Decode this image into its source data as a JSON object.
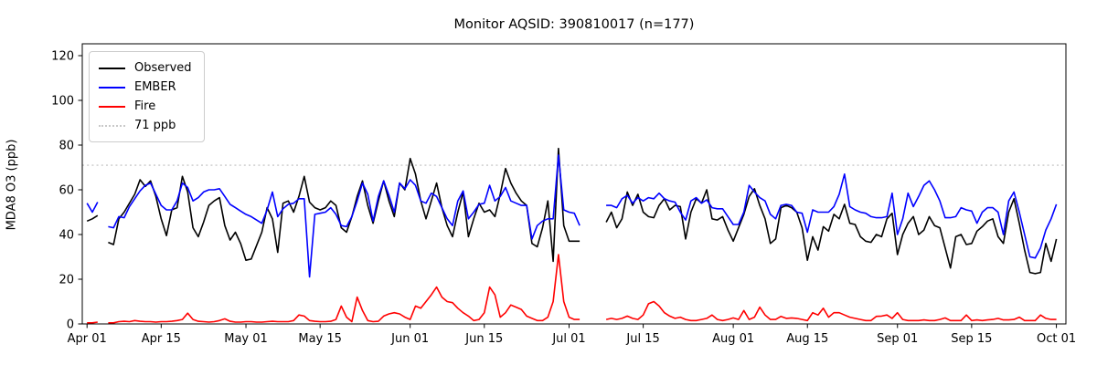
{
  "figure": {
    "background": "#ffffff"
  },
  "chart_data": {
    "type": "line",
    "title": "Monitor AQSID: 390810017 (n=177)",
    "xlabel": "",
    "ylabel": "MDA8 O3 (ppb)",
    "ylim": [
      0,
      125.3
    ],
    "yticks": [
      0,
      20,
      40,
      60,
      80,
      100,
      120
    ],
    "x_unit": "days since Apr 01",
    "xlim_days": [
      -0.9,
      184.8
    ],
    "xticks": [
      {
        "day": 0,
        "label": "Apr 01"
      },
      {
        "day": 14,
        "label": "Apr 15"
      },
      {
        "day": 30,
        "label": "May 01"
      },
      {
        "day": 44,
        "label": "May 15"
      },
      {
        "day": 61,
        "label": "Jun 01"
      },
      {
        "day": 75,
        "label": "Jun 15"
      },
      {
        "day": 91,
        "label": "Jul 01"
      },
      {
        "day": 105,
        "label": "Jul 15"
      },
      {
        "day": 122,
        "label": "Aug 01"
      },
      {
        "day": 136,
        "label": "Aug 15"
      },
      {
        "day": 153,
        "label": "Sep 01"
      },
      {
        "day": 167,
        "label": "Sep 15"
      },
      {
        "day": 183,
        "label": "Oct 01"
      }
    ],
    "grid": false,
    "legend_position": "upper left",
    "threshold": {
      "value": 71,
      "label": "71 ppb",
      "color": "#c9c9c9",
      "style": "dotted"
    },
    "gaps_note": "null = missing day (early Apr and Jul 04-07)",
    "series": [
      {
        "name": "Observed",
        "color": "#000000",
        "values": [
          46,
          47,
          48.5,
          null,
          36.5,
          35.5,
          47,
          50,
          54,
          58,
          64.5,
          61.5,
          64,
          57,
          47,
          39.5,
          51,
          52,
          66,
          59,
          43,
          39,
          45.5,
          53,
          55,
          56.5,
          44,
          37.5,
          41,
          36,
          28.5,
          29,
          35,
          41,
          52,
          47,
          32,
          54,
          55,
          50,
          57,
          66,
          54.5,
          52,
          51,
          52,
          55,
          53,
          43,
          41,
          48,
          57,
          64,
          53,
          45,
          55,
          64,
          55,
          48,
          63,
          60,
          74,
          67,
          55,
          47,
          55,
          63,
          52,
          44,
          39,
          50,
          59,
          39,
          47,
          54,
          50,
          51,
          48,
          58,
          69.5,
          63,
          58.5,
          55,
          53,
          36,
          34.5,
          43,
          55,
          28,
          78.5,
          44,
          37,
          37,
          37,
          null,
          null,
          null,
          null,
          45.5,
          50,
          43,
          47,
          59,
          53,
          58,
          50,
          48,
          47.5,
          53,
          56,
          51,
          53,
          52.5,
          38,
          50,
          56,
          54,
          60,
          47,
          46.5,
          48,
          42,
          37,
          43,
          49,
          57,
          60.5,
          53,
          47,
          36,
          38,
          52,
          53,
          52,
          50,
          43,
          28.5,
          39,
          33,
          43.5,
          41.5,
          49,
          47,
          53.5,
          45,
          44.5,
          39,
          37,
          36.5,
          40,
          39,
          47,
          49.5,
          31,
          40,
          45,
          48,
          40,
          42,
          48,
          44,
          43,
          34,
          25,
          39,
          40,
          35.5,
          36,
          41.5,
          43.5,
          46,
          47,
          39,
          36,
          50,
          56,
          45,
          33,
          23,
          22.5,
          23,
          36,
          28,
          38
        ]
      },
      {
        "name": "EMBER",
        "color": "#0000ff",
        "values": [
          54,
          50,
          54.5,
          null,
          43.5,
          43,
          48,
          47.5,
          52.5,
          56,
          59.5,
          62,
          63,
          58,
          53,
          51,
          51,
          55,
          63,
          61,
          55,
          56.5,
          59,
          60,
          60,
          60.5,
          57,
          53.5,
          52,
          50.5,
          49,
          48,
          46.5,
          45,
          51,
          59,
          48,
          51.5,
          53.5,
          54,
          56,
          56,
          21,
          49,
          49.5,
          50,
          52,
          49,
          44,
          43.5,
          48,
          55,
          63,
          58,
          46,
          57,
          64,
          57.5,
          50,
          63,
          60.5,
          64.5,
          62,
          55,
          54,
          58.5,
          57,
          52,
          47,
          44,
          55,
          59.5,
          47,
          50,
          53.5,
          54,
          62,
          55,
          57,
          61,
          55,
          54,
          53,
          53,
          38,
          44,
          46,
          47,
          47,
          75.5,
          51,
          50,
          49.5,
          44,
          null,
          null,
          null,
          null,
          53,
          53,
          52,
          56,
          57.5,
          54,
          56.5,
          55,
          56.5,
          56,
          58.5,
          56,
          55,
          54.5,
          50,
          46.5,
          55,
          56.5,
          54,
          55.5,
          52,
          51.5,
          51.5,
          48,
          44.5,
          44.5,
          50,
          62,
          59,
          56.5,
          55,
          49,
          47,
          53,
          53.5,
          53,
          50,
          49.5,
          41,
          51,
          50,
          50,
          50,
          52.5,
          58,
          67,
          52.5,
          51,
          50,
          49.5,
          48,
          47.5,
          47.5,
          48,
          58.5,
          40,
          47,
          58.5,
          52.5,
          57,
          62,
          64,
          60,
          55,
          47.5,
          47.5,
          48,
          52,
          51,
          50.5,
          45,
          50,
          52,
          52,
          50,
          40,
          55,
          59,
          50,
          40,
          30,
          29.5,
          34,
          42,
          47,
          53.5
        ]
      },
      {
        "name": "Fire",
        "color": "#ff0000",
        "values": [
          0.5,
          0.5,
          0.8,
          null,
          0.5,
          0.5,
          1,
          1.2,
          1,
          1.5,
          1.2,
          1,
          1,
          0.8,
          1,
          1,
          1.2,
          1.5,
          2,
          4.8,
          2,
          1.2,
          1,
          0.8,
          1,
          1.5,
          2.3,
          1.2,
          0.8,
          0.8,
          1,
          1,
          0.8,
          0.8,
          1,
          1.2,
          1,
          1,
          1,
          1.5,
          4,
          3.5,
          1.5,
          1.2,
          1,
          1,
          1.2,
          2,
          8,
          3,
          1,
          12,
          6,
          1.5,
          1,
          1.2,
          3.5,
          4.5,
          5,
          4.5,
          3,
          2,
          8,
          7,
          10,
          13,
          16.5,
          12,
          10,
          9.5,
          7,
          5,
          3.5,
          1.5,
          2,
          5,
          16.5,
          13,
          3,
          5,
          8.5,
          7.5,
          6.5,
          3.5,
          2.5,
          1.5,
          1.5,
          3,
          10,
          31,
          10,
          3,
          2,
          2,
          null,
          null,
          null,
          null,
          2,
          2.5,
          2,
          2.5,
          3.5,
          2.5,
          2,
          4,
          9,
          10,
          8,
          5,
          3.5,
          2.5,
          3,
          2,
          1.5,
          1.5,
          2,
          2.5,
          4,
          2,
          1.5,
          2,
          2.7,
          2,
          6,
          2,
          3,
          7.5,
          4,
          2,
          2,
          3.4,
          2.5,
          2.7,
          2.5,
          2,
          1.5,
          5,
          4,
          7,
          3,
          5,
          5,
          4,
          3,
          2.5,
          2,
          1.5,
          1.5,
          3.4,
          3.5,
          4,
          2.5,
          5,
          2,
          1.5,
          1.5,
          1.5,
          1.8,
          1.5,
          1.5,
          2,
          2.7,
          1.5,
          1.5,
          1.5,
          4,
          1.5,
          1.8,
          1.5,
          1.8,
          2,
          2.5,
          1.8,
          1.8,
          2,
          3,
          1.5,
          1.5,
          1.5,
          4,
          2.5,
          2,
          2
        ]
      }
    ]
  },
  "legend": {
    "items": [
      {
        "label": "Observed",
        "color": "#000000",
        "dash": "solid"
      },
      {
        "label": "EMBER",
        "color": "#0000ff",
        "dash": "solid"
      },
      {
        "label": "Fire",
        "color": "#ff0000",
        "dash": "solid"
      },
      {
        "label": "71 ppb",
        "color": "#c9c9c9",
        "dash": "dotted"
      }
    ]
  }
}
